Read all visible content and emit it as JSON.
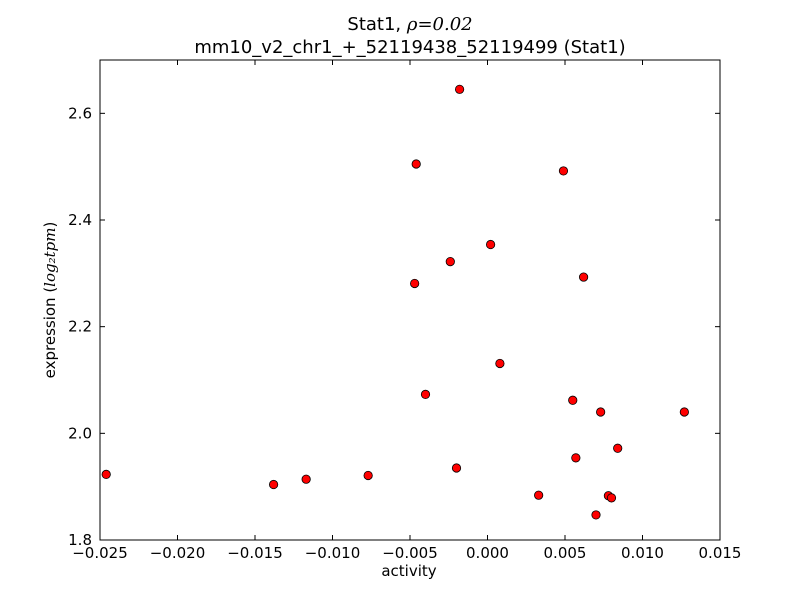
{
  "chart_data": {
    "type": "scatter",
    "title_line1_prefix": "Stat1, ",
    "title_line1_math": "ρ=0.02",
    "title_line2": "mm10_v2_chr1_+_52119438_52119499 (Stat1)",
    "xlabel": "activity",
    "ylabel_prefix": "expression (",
    "ylabel_math": "log₂tpm",
    "ylabel_suffix": ")",
    "xlim": [
      -0.025,
      0.015
    ],
    "ylim": [
      1.8,
      2.7
    ],
    "x_ticks": [
      -0.025,
      -0.02,
      -0.015,
      -0.01,
      -0.005,
      0.0,
      0.005,
      0.01,
      0.015
    ],
    "x_tick_labels": [
      "−0.025",
      "−0.020",
      "−0.015",
      "−0.010",
      "−0.005",
      "0.000",
      "0.005",
      "0.010",
      "0.015"
    ],
    "y_ticks": [
      1.8,
      2.0,
      2.2,
      2.4,
      2.6
    ],
    "y_tick_labels": [
      "1.8",
      "2.0",
      "2.2",
      "2.4",
      "2.6"
    ],
    "marker_color": "#ff0000",
    "marker_edge_color": "#000000",
    "grid": false,
    "points": [
      {
        "x": -0.0246,
        "y": 1.923
      },
      {
        "x": -0.0138,
        "y": 1.904
      },
      {
        "x": -0.0117,
        "y": 1.914
      },
      {
        "x": -0.0077,
        "y": 1.921
      },
      {
        "x": -0.0046,
        "y": 2.505
      },
      {
        "x": -0.0047,
        "y": 2.281
      },
      {
        "x": -0.004,
        "y": 2.073
      },
      {
        "x": -0.0024,
        "y": 2.322
      },
      {
        "x": -0.002,
        "y": 1.935
      },
      {
        "x": -0.0018,
        "y": 2.645
      },
      {
        "x": 0.0002,
        "y": 2.354
      },
      {
        "x": 0.0008,
        "y": 2.131
      },
      {
        "x": 0.0033,
        "y": 1.884
      },
      {
        "x": 0.0049,
        "y": 2.492
      },
      {
        "x": 0.0055,
        "y": 2.062
      },
      {
        "x": 0.0057,
        "y": 1.954
      },
      {
        "x": 0.0062,
        "y": 2.293
      },
      {
        "x": 0.007,
        "y": 1.847
      },
      {
        "x": 0.0073,
        "y": 2.04
      },
      {
        "x": 0.0078,
        "y": 1.883
      },
      {
        "x": 0.008,
        "y": 1.879
      },
      {
        "x": 0.0084,
        "y": 1.972
      },
      {
        "x": 0.0127,
        "y": 2.04
      }
    ]
  }
}
